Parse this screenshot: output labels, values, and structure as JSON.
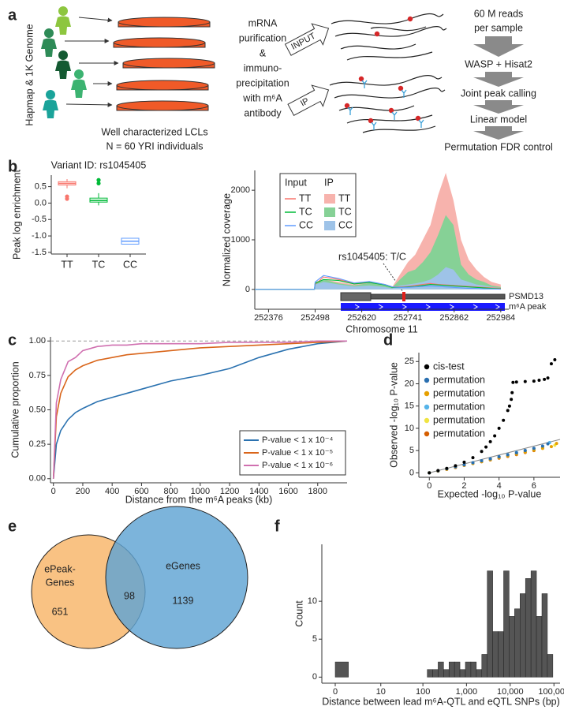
{
  "panel_labels": [
    "a",
    "b",
    "c",
    "d",
    "e",
    "f"
  ],
  "diagram": {
    "side_label": "Hapmap & 1K Genome",
    "cells_caption": [
      "Well characterized LCLs",
      "N = 60 YRI individuals"
    ],
    "treatment": [
      "mRNA",
      "purification",
      "&",
      "immuno-",
      "precipitation",
      "with m⁶A",
      "antibody"
    ],
    "input_label": "INPUT",
    "ip_label": "IP",
    "reads": [
      "60 M reads",
      "per sample"
    ],
    "steps": [
      "WASP + Hisat2",
      "Joint peak calling",
      "Linear model",
      "Permutation FDR control"
    ]
  },
  "venn": {
    "sets": [
      {
        "label_lines": [
          "ePeak-",
          "Genes"
        ],
        "count": 651
      },
      {
        "label_lines": [
          "eGenes"
        ],
        "count": 1139
      }
    ],
    "overlap": 98
  },
  "chart_data": [
    {
      "type": "box",
      "title": "Variant ID: rs1045405",
      "y_label": "Peak log enrichment",
      "categories": [
        "TT",
        "TC",
        "CC"
      ],
      "colors": [
        "#f8766d",
        "#00ba38",
        "#619cff"
      ],
      "whisker_low": [
        0.45,
        -0.07,
        -1.25
      ],
      "q1": [
        0.55,
        0.03,
        -1.25
      ],
      "median": [
        0.6,
        0.08,
        -1.16
      ],
      "q3": [
        0.65,
        0.15,
        -1.07
      ],
      "whisker_high": [
        0.73,
        0.3,
        -1.07
      ],
      "outliers": [
        [
          0.2,
          0.13
        ],
        [
          0.6,
          0.7
        ],
        []
      ],
      "ylim": [
        -1.55,
        0.85
      ],
      "yticks": [
        -1.5,
        {
          "value": -1,
          "label": "-1.0"
        },
        -0.5,
        {
          "value": 0,
          "label": "0.0"
        },
        0.5
      ]
    },
    {
      "type": "area",
      "y_label": "Normalized coverage",
      "x_label": "Chromosome 11",
      "legend_titles": [
        "Input",
        "IP"
      ],
      "x": [
        252340,
        252496,
        252498,
        252520,
        252560,
        252600,
        252640,
        252680,
        252700,
        252720,
        252741,
        252760,
        252780,
        252800,
        252820,
        252840,
        252860,
        252880,
        252900,
        252920,
        252940,
        252960,
        252984
      ],
      "series": [
        {
          "name": "TT",
          "style": "area",
          "color": "#f7b3ad",
          "values": [
            0,
            0,
            150,
            200,
            150,
            100,
            150,
            100,
            50,
            300,
            550,
            700,
            1000,
            1300,
            1900,
            2350,
            1800,
            1000,
            600,
            400,
            250,
            150,
            100
          ]
        },
        {
          "name": "TC",
          "style": "area",
          "color": "#86d196",
          "values": [
            0,
            0,
            150,
            200,
            120,
            80,
            130,
            80,
            40,
            200,
            350,
            400,
            550,
            750,
            1100,
            1500,
            1300,
            500,
            300,
            200,
            150,
            80,
            50
          ]
        },
        {
          "name": "CC",
          "style": "area",
          "color": "#9ec3e8",
          "values": [
            0,
            0,
            100,
            150,
            100,
            60,
            80,
            50,
            20,
            80,
            100,
            120,
            150,
            200,
            300,
            450,
            400,
            200,
            150,
            100,
            80,
            50,
            30
          ]
        },
        {
          "name": "TT",
          "style": "line",
          "color": "#f8766d",
          "values": [
            0,
            0,
            100,
            250,
            200,
            120,
            150,
            100,
            50,
            50,
            60,
            80,
            100,
            120,
            100,
            90,
            80,
            70,
            60,
            50,
            40,
            30,
            20
          ]
        },
        {
          "name": "TC",
          "style": "line",
          "color": "#00ba38",
          "values": [
            0,
            0,
            120,
            200,
            180,
            110,
            140,
            90,
            40,
            40,
            50,
            60,
            80,
            100,
            90,
            80,
            70,
            60,
            50,
            40,
            30,
            20,
            10
          ]
        },
        {
          "name": "CC",
          "style": "line",
          "color": "#619cff",
          "values": [
            0,
            0,
            150,
            280,
            220,
            130,
            160,
            100,
            50,
            40,
            40,
            50,
            60,
            70,
            60,
            50,
            40,
            30,
            20,
            20,
            10,
            10,
            5
          ]
        }
      ],
      "xlim": [
        252340,
        253005
      ],
      "xticks": [
        252376,
        252498,
        252620,
        252741,
        252862,
        252984
      ],
      "ylim": [
        -400,
        2400
      ],
      "yticks": [
        0,
        1000,
        2000
      ],
      "annotation": "rs1045405: T/C",
      "gene_label": "PSMD13",
      "peak_label": "m⁶A peak"
    },
    {
      "type": "line",
      "x_label": "Distance from the m⁶A peaks (kb)",
      "y_label": "Cumulative proportion",
      "x": [
        0,
        20,
        50,
        100,
        150,
        200,
        300,
        400,
        500,
        600,
        800,
        1000,
        1200,
        1400,
        1600,
        1800,
        2000
      ],
      "series": [
        {
          "name": "P-value < 1 x 10⁻⁴",
          "color": "#2b72b0",
          "values": [
            0,
            0.25,
            0.35,
            0.43,
            0.48,
            0.51,
            0.56,
            0.59,
            0.62,
            0.65,
            0.71,
            0.75,
            0.8,
            0.88,
            0.94,
            0.98,
            1
          ]
        },
        {
          "name": "P-value < 1 x 10⁻⁵",
          "color": "#d9651a",
          "values": [
            0,
            0.45,
            0.62,
            0.74,
            0.79,
            0.82,
            0.86,
            0.88,
            0.9,
            0.91,
            0.93,
            0.95,
            0.96,
            0.97,
            0.98,
            0.99,
            1
          ]
        },
        {
          "name": "P-value < 1 x 10⁻⁶",
          "color": "#d070b0",
          "values": [
            0,
            0.55,
            0.72,
            0.85,
            0.88,
            0.93,
            0.96,
            0.97,
            0.97,
            0.98,
            0.98,
            0.98,
            0.99,
            0.99,
            0.99,
            1,
            1
          ]
        }
      ],
      "xlim": [
        -20,
        2000
      ],
      "xticks": [
        0,
        200,
        400,
        600,
        800,
        1000,
        1200,
        1400,
        1600,
        1800
      ],
      "ylim": [
        -0.03,
        1.03
      ],
      "yticks": [
        {
          "value": 0,
          "label": "0.00"
        },
        0.25,
        {
          "value": 0.5,
          "label": "0.50"
        },
        0.75,
        {
          "value": 1,
          "label": "1.00"
        }
      ],
      "reference_line": 1,
      "legend": "bottom-right"
    },
    {
      "type": "scatter",
      "x_label": "Expected -log₁₀ P-value",
      "y_label": "Observed -log₁₀ P-value",
      "series": [
        {
          "name": "cis-test",
          "color": "#000000",
          "x": [
            0,
            0.5,
            1,
            1.5,
            2,
            2.5,
            3,
            3.25,
            3.5,
            3.75,
            4,
            4.25,
            4.5,
            4.6,
            4.7,
            4.75,
            4.8,
            5,
            5.5,
            6,
            6.3,
            6.6,
            6.8,
            7,
            7.2
          ],
          "values": [
            0,
            0.5,
            1,
            1.6,
            2.4,
            3.4,
            4.8,
            5.8,
            7,
            8.3,
            10,
            11.8,
            14,
            15,
            16.5,
            18,
            20.3,
            20.4,
            20.5,
            20.6,
            20.8,
            21,
            21.3,
            24.5,
            25.4
          ]
        },
        {
          "name": "permutation",
          "color": "#2a6fb0",
          "x": [
            0,
            0.5,
            1,
            1.5,
            2,
            2.5,
            3,
            3.5,
            4,
            4.5,
            5,
            5.5,
            6,
            6.5,
            6.8
          ],
          "values": [
            0,
            0.45,
            0.9,
            1.35,
            1.8,
            2.25,
            2.7,
            3.15,
            3.6,
            4.05,
            4.5,
            5,
            5.5,
            6,
            6.5
          ]
        },
        {
          "name": "permutation",
          "color": "#e6a000",
          "x": [
            0,
            0.5,
            1,
            1.5,
            2,
            2.5,
            3,
            3.5,
            4,
            4.5,
            5,
            5.5,
            6,
            6.5,
            7,
            7.3
          ],
          "values": [
            0,
            0.4,
            0.8,
            1.25,
            1.7,
            2.1,
            2.5,
            2.95,
            3.4,
            3.8,
            4.2,
            4.65,
            5.1,
            5.5,
            5.9,
            6.6
          ]
        },
        {
          "name": "permutation",
          "color": "#56b4e9",
          "x": [
            0,
            0.5,
            1,
            1.5,
            2,
            2.5,
            3,
            3.5,
            4,
            4.5,
            5,
            5.5,
            6,
            6.5,
            6.9
          ],
          "values": [
            0,
            0.45,
            0.9,
            1.35,
            1.8,
            2.25,
            2.7,
            3.15,
            3.6,
            4.1,
            4.6,
            5.05,
            5.5,
            6,
            6.8
          ]
        },
        {
          "name": "permutation",
          "color": "#f0e442",
          "x": [
            0,
            0.5,
            1,
            1.5,
            2,
            2.5,
            3,
            3.5,
            4,
            4.5,
            5,
            5.5,
            6,
            6.5,
            7.2
          ],
          "values": [
            0,
            0.42,
            0.85,
            1.3,
            1.7,
            2.15,
            2.6,
            3.05,
            3.5,
            3.9,
            4.3,
            4.75,
            5.2,
            5.7,
            6.2
          ]
        },
        {
          "name": "permutation",
          "color": "#d55e00",
          "x": [
            0,
            0.5,
            1,
            1.5,
            2,
            2.5,
            3,
            3.5,
            4,
            4.5,
            5,
            5.5,
            6,
            6.5
          ],
          "values": [
            0,
            0.4,
            0.8,
            1.2,
            1.65,
            2.1,
            2.5,
            2.9,
            3.3,
            3.7,
            4.1,
            4.55,
            5,
            5.6
          ]
        }
      ],
      "xlim": [
        -0.6,
        7.5
      ],
      "xticks": [
        0,
        2,
        4,
        6
      ],
      "ylim": [
        -1,
        27
      ],
      "yticks": [
        0,
        5,
        10,
        15,
        20,
        25
      ],
      "legend": "top-left"
    },
    {
      "type": "histogram",
      "x_label": "Distance between lead m⁶A-QTL and eQTL SNPs (bp)",
      "y_label": "Count",
      "color": "#555555",
      "log": true,
      "bins": [
        0,
        1,
        126,
        168,
        224,
        299,
        398,
        531,
        708,
        944,
        1259,
        1679,
        2239,
        2985,
        3981,
        5309,
        7079,
        9441,
        12589,
        16788,
        22387,
        29854,
        39811,
        53088,
        70795,
        94406
      ],
      "values": [
        2,
        0,
        1,
        1,
        2,
        1,
        2,
        2,
        1,
        2,
        2,
        1,
        3,
        14,
        6,
        6,
        14,
        8,
        9,
        11,
        13,
        14,
        8,
        11,
        3
      ],
      "xlim": [
        0,
        138000
      ],
      "xticks": [
        0,
        10,
        100,
        {
          "value": 1000,
          "label": "1,000"
        },
        {
          "value": 10000,
          "label": "10,000"
        },
        {
          "value": 100000,
          "label": "100,000"
        }
      ],
      "ylim": [
        -0.8,
        17.5
      ],
      "yticks": [
        0,
        5,
        10
      ]
    }
  ]
}
